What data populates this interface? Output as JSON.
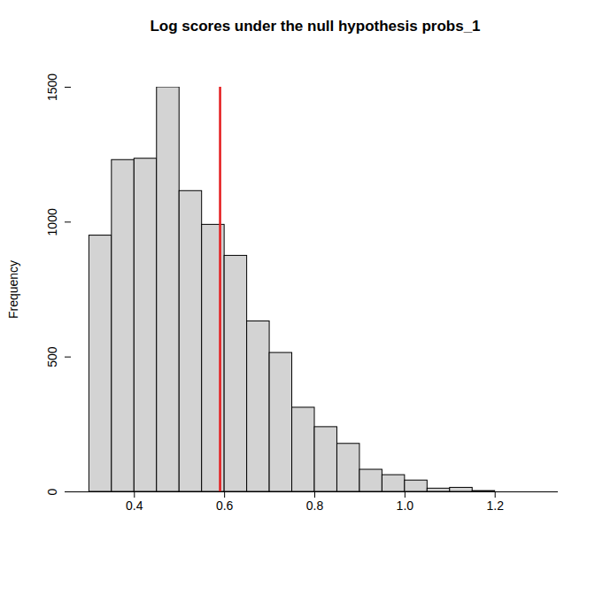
{
  "chart_data": {
    "type": "histogram",
    "title": "Log scores under the null hypothesis probs_1",
    "y_label": "Frequency",
    "bins": [
      0.3,
      0.35,
      0.4,
      0.45,
      0.5,
      0.55,
      0.6,
      0.65,
      0.7,
      0.75,
      0.8,
      0.85,
      0.9,
      0.95,
      1.0,
      1.05,
      1.1,
      1.15,
      1.2,
      1.25,
      1.3
    ],
    "values": [
      950,
      1230,
      1235,
      1500,
      1115,
      990,
      875,
      632,
      515,
      312,
      240,
      178,
      82,
      62,
      42,
      12,
      15,
      3,
      0,
      0
    ],
    "color": "#d3d3d3",
    "xlim": [
      0.26,
      1.34
    ],
    "xticks": [
      0.4,
      0.6,
      0.8,
      {
        "value": 1,
        "label": "1.0"
      },
      1.2
    ],
    "ylim": [
      0,
      1500
    ],
    "yticks": [
      0,
      500,
      1000,
      1500
    ],
    "reference_line": {
      "value": 0.59,
      "color": "#e41a1c"
    },
    "grid": false
  }
}
